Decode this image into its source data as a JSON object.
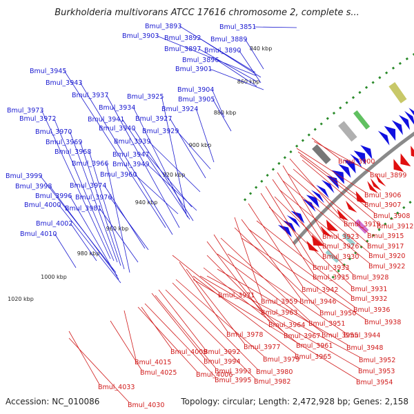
{
  "title": "Burkholderia multivorans ATCC 17616 chromosome 2, complete s...",
  "footer": {
    "accession": "Accession: NC_010086",
    "summary": "Topology: circular; Length: 2,472,928 bp; Genes: 2,158"
  },
  "colors": {
    "forward_genes": "#1010e0",
    "reverse_genes": "#e01010",
    "backbone": "#8a8a8a",
    "gc_ticks": "#2a8a2a",
    "forward_labels": "#1a1ad0",
    "reverse_labels": "#d01a1a"
  },
  "position_markers": [
    "840 kbp",
    "860 kbp",
    "880 kbp",
    "900 kbp",
    "920 kbp",
    "940 kbp",
    "960 kbp",
    "980 kbp",
    "1000 kbp",
    "1020 kbp"
  ],
  "forward_strand_labels": [
    "Bmul_3851",
    "Bmul_3893",
    "Bmul_3903",
    "Bmul_3892",
    "Bmul_3889",
    "Bmul_3897",
    "Bmul_3890",
    "Bmul_3896",
    "Bmul_3901",
    "Bmul_3945",
    "Bmul_3943",
    "Bmul_3904",
    "Bmul_3937",
    "Bmul_3925",
    "Bmul_3905",
    "Bmul_3934",
    "Bmul_3924",
    "Bmul_3973",
    "Bmul_3941",
    "Bmul_3927",
    "Bmul_3972",
    "Bmul_3940",
    "Bmul_3929",
    "Bmul_3970",
    "Bmul_3939",
    "Bmul_3969",
    "Bmul_3968",
    "Bmul_3947",
    "Bmul_3966",
    "Bmul_3949",
    "Bmul_3960",
    "Bmul_3999",
    "Bmul_3974",
    "Bmul_3998",
    "Bmul_3996",
    "Bmul_3976",
    "Bmul_4000",
    "Bmul_3981",
    "Bmul_4002",
    "Bmul_4010"
  ],
  "reverse_strand_labels": [
    "Bmul_3900",
    "Bmul_3899",
    "Bmul_3906",
    "Bmul_3907",
    "Bmul_3908",
    "Bmul_3919",
    "Bmul_3912",
    "Bmul_3923",
    "Bmul_3915",
    "Bmul_3926",
    "Bmul_3917",
    "Bmul_3930",
    "Bmul_3920",
    "Bmul_3933",
    "Bmul_3922",
    "Bmul_3935",
    "Bmul_3928",
    "Bmul_3942",
    "Bmul_3931",
    "Bmul_3971",
    "Bmul_3959",
    "Bmul_3946",
    "Bmul_3932",
    "Bmul_3963",
    "Bmul_3950",
    "Bmul_3936",
    "Bmul_3964",
    "Bmul_3951",
    "Bmul_3938",
    "Bmul_3978",
    "Bmul_3967",
    "Bmul_3955",
    "Bmul_3944",
    "Bmul_3977",
    "Bmul_3961",
    "Bmul_3948",
    "Bmul_4009",
    "Bmul_3992",
    "Bmul_3979",
    "Bmul_3965",
    "Bmul_3952",
    "Bmul_4015",
    "Bmul_3994",
    "Bmul_3993",
    "Bmul_3980",
    "Bmul_3953",
    "Bmul_4025",
    "Bmul_4006",
    "Bmul_3995",
    "Bmul_3982",
    "Bmul_3954",
    "Bmul_4033",
    "Bmul_4030"
  ]
}
